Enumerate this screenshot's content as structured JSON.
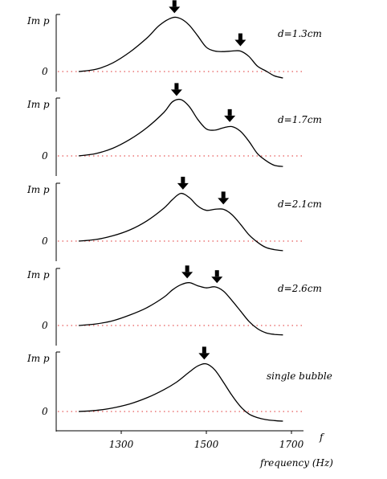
{
  "chart_data": [
    {
      "type": "line",
      "ylabel": "Im p",
      "zero_label": "0",
      "annotation": "d=1.3cm",
      "x": [
        1200,
        1240,
        1280,
        1320,
        1360,
        1390,
        1420,
        1440,
        1460,
        1480,
        1500,
        1520,
        1540,
        1560,
        1580,
        1600,
        1620,
        1640,
        1660,
        1680
      ],
      "y": [
        0.0,
        0.04,
        0.16,
        0.36,
        0.62,
        0.86,
        1.0,
        0.98,
        0.86,
        0.66,
        0.45,
        0.38,
        0.37,
        0.38,
        0.38,
        0.28,
        0.1,
        0.01,
        -0.08,
        -0.12
      ],
      "peaks": [
        1425,
        1580
      ]
    },
    {
      "type": "line",
      "ylabel": "Im p",
      "zero_label": "0",
      "annotation": "d=1.7cm",
      "x": [
        1200,
        1240,
        1280,
        1320,
        1360,
        1400,
        1420,
        1440,
        1460,
        1480,
        1500,
        1520,
        1540,
        1560,
        1580,
        1600,
        1620,
        1640,
        1660,
        1680
      ],
      "y": [
        0.0,
        0.04,
        0.13,
        0.28,
        0.48,
        0.74,
        0.92,
        0.96,
        0.84,
        0.62,
        0.46,
        0.44,
        0.48,
        0.5,
        0.42,
        0.25,
        0.04,
        -0.08,
        -0.16,
        -0.18
      ],
      "peaks": [
        1430,
        1555
      ]
    },
    {
      "type": "line",
      "ylabel": "Im p",
      "zero_label": "0",
      "annotation": "d=2.1cm",
      "x": [
        1200,
        1240,
        1280,
        1320,
        1360,
        1400,
        1420,
        1440,
        1460,
        1480,
        1500,
        1520,
        1540,
        1560,
        1580,
        1600,
        1620,
        1640,
        1660,
        1680
      ],
      "y": [
        0.0,
        0.03,
        0.1,
        0.21,
        0.38,
        0.62,
        0.78,
        0.9,
        0.82,
        0.66,
        0.58,
        0.6,
        0.6,
        0.5,
        0.32,
        0.12,
        -0.02,
        -0.12,
        -0.16,
        -0.18
      ],
      "peaks": [
        1445,
        1540
      ]
    },
    {
      "type": "line",
      "ylabel": "Im p",
      "zero_label": "0",
      "annotation": "d=2.6cm",
      "x": [
        1200,
        1240,
        1280,
        1320,
        1360,
        1400,
        1420,
        1440,
        1460,
        1480,
        1500,
        1520,
        1540,
        1560,
        1580,
        1600,
        1620,
        1640,
        1660,
        1680
      ],
      "y": [
        0.0,
        0.03,
        0.09,
        0.2,
        0.34,
        0.54,
        0.68,
        0.78,
        0.82,
        0.76,
        0.72,
        0.74,
        0.66,
        0.48,
        0.28,
        0.08,
        -0.06,
        -0.14,
        -0.17,
        -0.18
      ],
      "peaks": [
        1455,
        1525
      ]
    },
    {
      "type": "line",
      "ylabel": "Im p",
      "zero_label": "0",
      "annotation": "single bubble",
      "x": [
        1200,
        1240,
        1280,
        1320,
        1360,
        1400,
        1430,
        1460,
        1480,
        1500,
        1520,
        1540,
        1560,
        1580,
        1600,
        1620,
        1640,
        1660,
        1680
      ],
      "y": [
        0.0,
        0.02,
        0.07,
        0.15,
        0.27,
        0.43,
        0.58,
        0.78,
        0.9,
        0.94,
        0.82,
        0.58,
        0.32,
        0.1,
        -0.05,
        -0.12,
        -0.16,
        -0.18,
        -0.19
      ],
      "peaks": [
        1495
      ]
    }
  ],
  "x_axis": {
    "ticks": [
      1300,
      1500,
      1700
    ],
    "tick_labels": [
      "1300",
      "1500",
      "1700"
    ],
    "xlim": [
      1160,
      1720
    ],
    "label": "frequency (Hz)",
    "symbol": "f"
  },
  "colors": {
    "curve": "#000000",
    "zero_line": "#e03030",
    "axes": "#000000",
    "arrow": "#000000"
  }
}
